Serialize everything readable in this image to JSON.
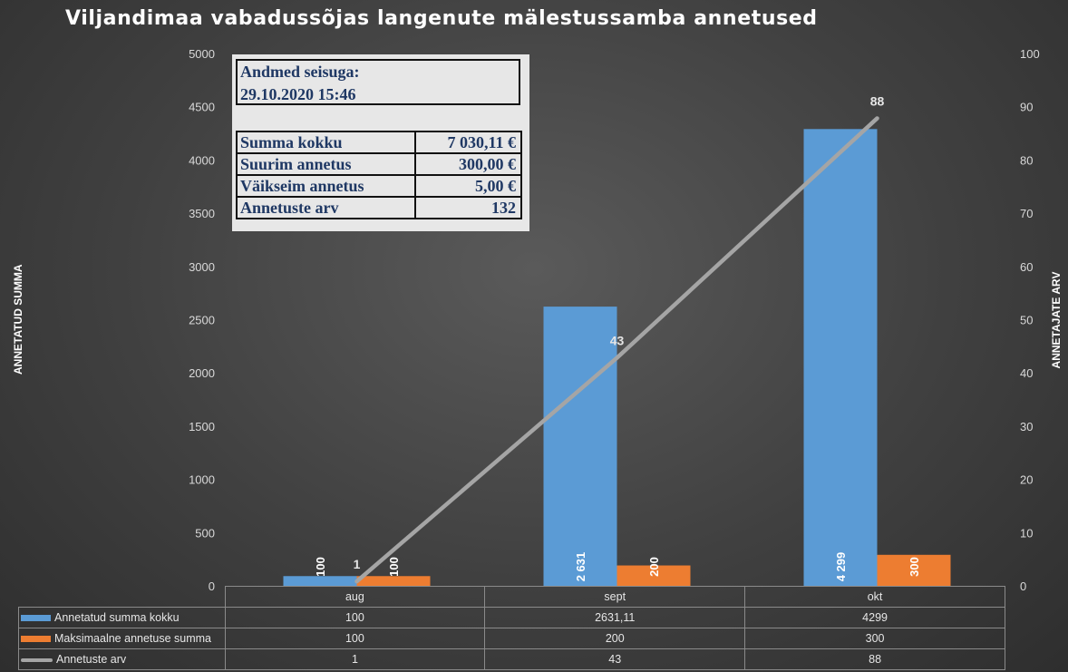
{
  "chart_data": {
    "type": "bar",
    "title": "Viljandimaa vabadussõjas langenute mälestussamba annetused",
    "categories": [
      "aug",
      "sept",
      "okt"
    ],
    "ylabel": "ANNETATUD SUMMA",
    "y2label": "ANNETAJATE ARV",
    "ylim": [
      0,
      5000
    ],
    "y2lim": [
      0,
      100
    ],
    "yticks": [
      "0",
      "500",
      "1000",
      "1500",
      "2000",
      "2500",
      "3000",
      "3500",
      "4000",
      "4500",
      "5000"
    ],
    "y2ticks": [
      "0",
      "10",
      "20",
      "30",
      "40",
      "50",
      "60",
      "70",
      "80",
      "90",
      "100"
    ],
    "grid": false,
    "legend": "data-table",
    "series": [
      {
        "name": "Annetatud summa kokku",
        "kind": "bar",
        "axis": "left",
        "color": "#5b9bd5",
        "values": [
          100,
          2631.11,
          4299
        ],
        "table_values": [
          "100",
          "2631,11",
          "4299"
        ],
        "data_labels": [
          "100",
          "2 631",
          "4 299"
        ]
      },
      {
        "name": "Maksimaalne annetuse summa",
        "kind": "bar",
        "axis": "left",
        "color": "#ed7d31",
        "values": [
          100,
          200,
          300
        ],
        "table_values": [
          "100",
          "200",
          "300"
        ],
        "data_labels": [
          "100",
          "200",
          "300"
        ]
      },
      {
        "name": "Annetuste arv",
        "kind": "line",
        "axis": "right",
        "color": "#a5a5a5",
        "values": [
          1,
          43,
          88
        ],
        "table_values": [
          "1",
          "43",
          "88"
        ],
        "data_labels": [
          "1",
          "43",
          "88"
        ]
      }
    ]
  },
  "info_box": {
    "heading": "Andmed seisuga:",
    "timestamp": "29.10.2020 15:46",
    "rows": [
      {
        "label": "Summa kokku",
        "value": "7 030,11 €"
      },
      {
        "label": "Suurim annetus",
        "value": "300,00 €"
      },
      {
        "label": "Väikseim annetus",
        "value": "5,00 €"
      },
      {
        "label": "Annetuste arv",
        "value": "132"
      }
    ]
  }
}
